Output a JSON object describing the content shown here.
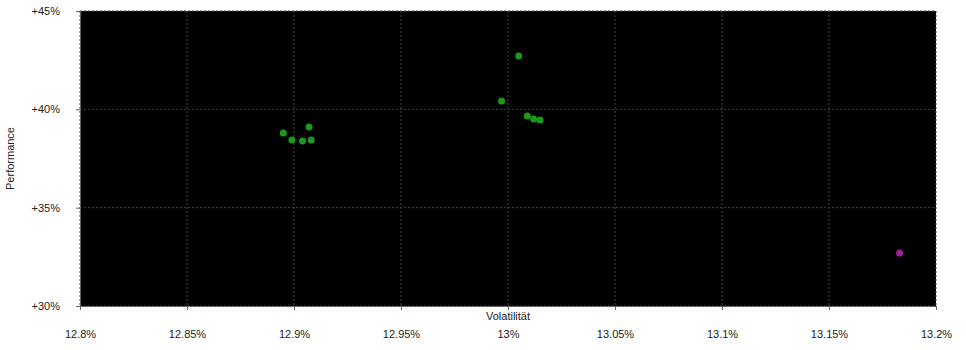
{
  "chart_data": {
    "type": "scatter",
    "x_label": "Volatilität",
    "y_label": "Performance",
    "xlim": [
      12.8,
      13.2
    ],
    "ylim": [
      30,
      45
    ],
    "xticks": [
      {
        "value": 12.8,
        "label": "12.8%"
      },
      {
        "value": 12.85,
        "label": "12.85%"
      },
      {
        "value": 12.9,
        "label": "12.9%"
      },
      {
        "value": 12.95,
        "label": "12.95%"
      },
      {
        "value": 13,
        "label": "13%"
      },
      {
        "value": 13.05,
        "label": "13.05%"
      },
      {
        "value": 13.1,
        "label": "13.1%"
      },
      {
        "value": 13.15,
        "label": "13.15%"
      },
      {
        "value": 13.2,
        "label": "13.2%"
      }
    ],
    "yticks": [
      {
        "value": 30,
        "label": "+30%"
      },
      {
        "value": 35,
        "label": "+35%"
      },
      {
        "value": 40,
        "label": "+40%"
      },
      {
        "value": 45,
        "label": "+45%"
      }
    ],
    "grid": true,
    "series": [
      {
        "color": "#1a9a1a",
        "x": [
          12.895,
          12.899,
          12.904,
          12.907,
          12.908,
          12.997,
          13.005,
          13.009,
          13.012,
          13.015
        ],
        "values": [
          38.8,
          38.44,
          38.39,
          39.1,
          38.44,
          40.42,
          42.71,
          39.66,
          39.51,
          39.46
        ]
      },
      {
        "color": "#a0209a",
        "x": [
          13.183
        ],
        "values": [
          32.69
        ]
      }
    ]
  }
}
